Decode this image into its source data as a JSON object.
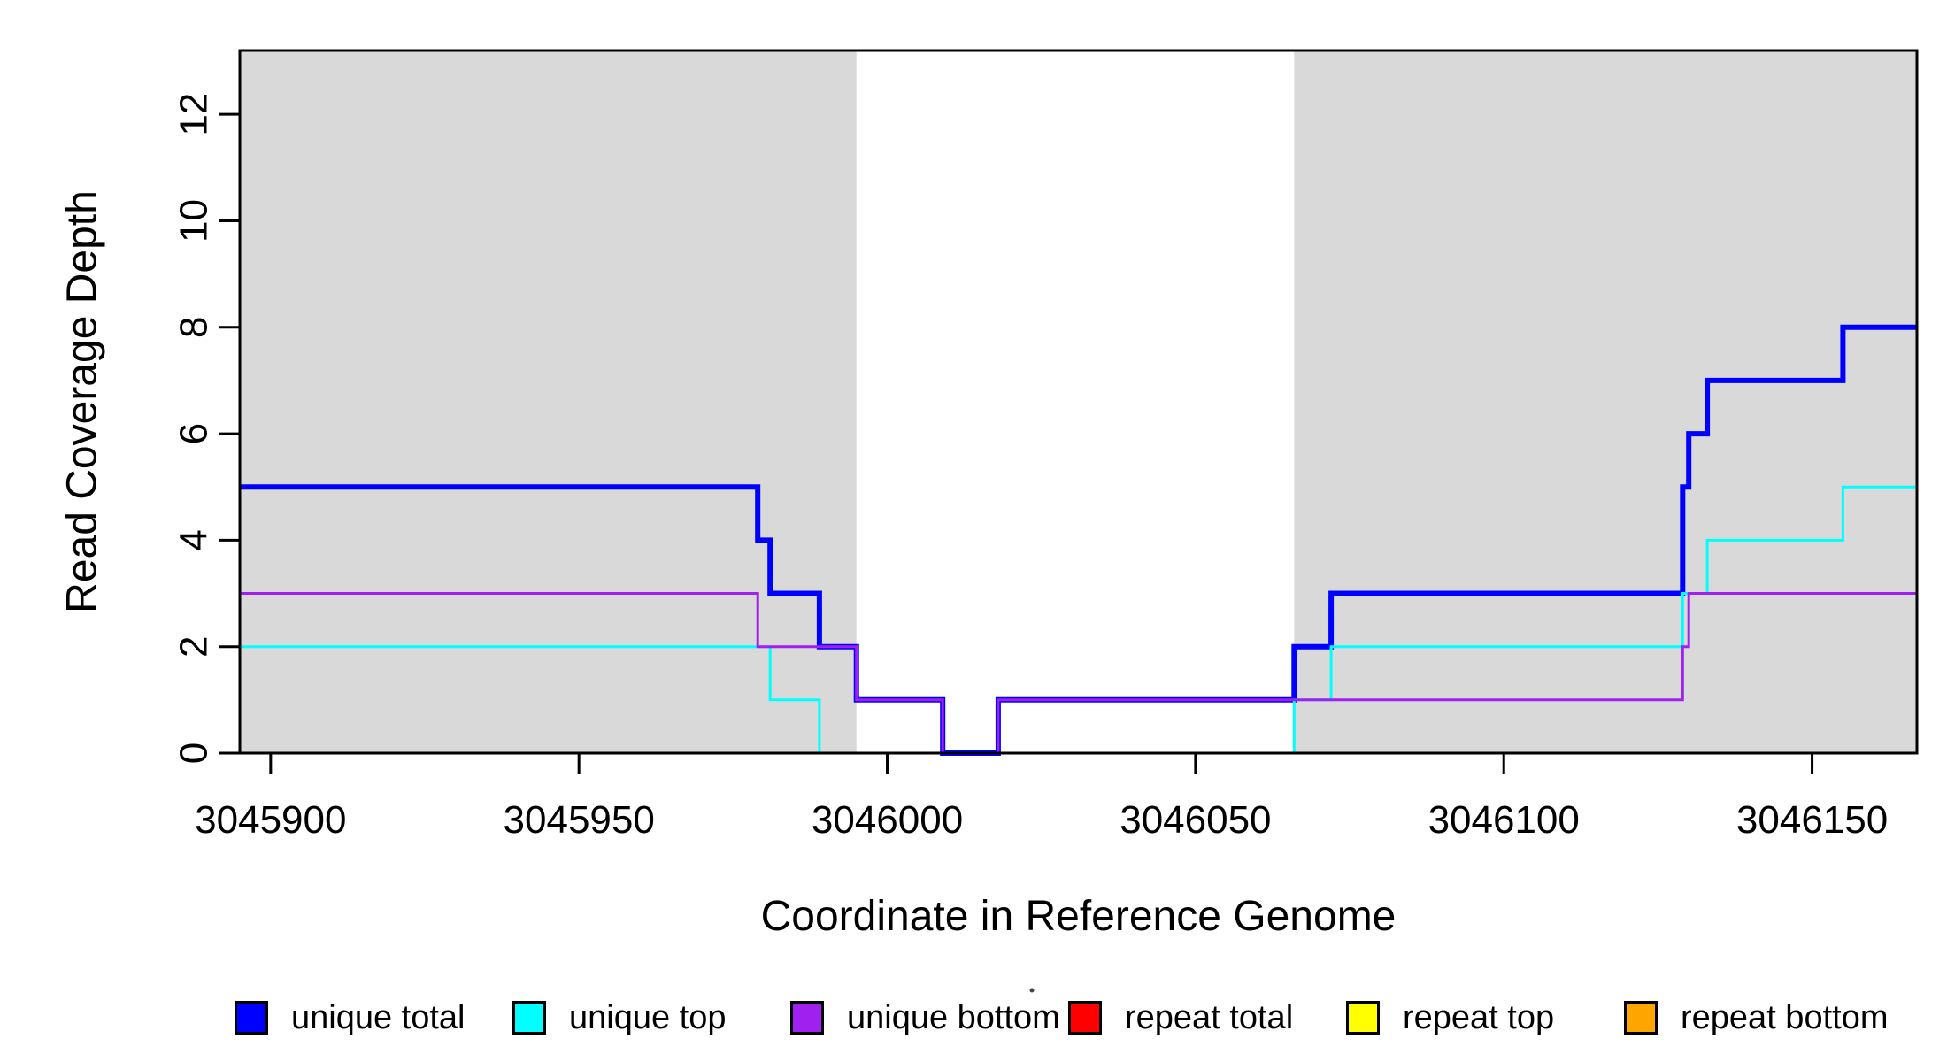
{
  "figure": {
    "background": "#ffffff",
    "band_color": "#d9d9d9",
    "box_color": "#000000",
    "stray_mark": "."
  },
  "chart_data": {
    "type": "line",
    "subtype": "step-after",
    "title": "",
    "xlabel": "Coordinate in Reference Genome",
    "ylabel": "Read Coverage Depth",
    "xlim": [
      3045895,
      3046167
    ],
    "ylim": [
      0,
      13.2
    ],
    "xticks": [
      3045900,
      3045950,
      3046000,
      3046050,
      3046100,
      3046150
    ],
    "yticks": [
      0,
      2,
      4,
      6,
      8,
      10,
      12
    ],
    "grid": false,
    "legend_position": "bottom",
    "shaded_regions": [
      {
        "name": "left-gray-band",
        "x0": 3045895,
        "x1": 3045995
      },
      {
        "name": "right-gray-band",
        "x0": 3046066,
        "x1": 3046167
      }
    ],
    "series": [
      {
        "name": "unique total",
        "color": "#0000ff",
        "width": 6,
        "breakpoints": [
          [
            3045895,
            5
          ],
          [
            3045979,
            4
          ],
          [
            3045981,
            3
          ],
          [
            3045989,
            2
          ],
          [
            3045995,
            1
          ],
          [
            3046009,
            0
          ],
          [
            3046018,
            1
          ],
          [
            3046066,
            2
          ],
          [
            3046072,
            3
          ],
          [
            3046129,
            5
          ],
          [
            3046130,
            6
          ],
          [
            3046133,
            7
          ],
          [
            3046155,
            8
          ]
        ]
      },
      {
        "name": "unique top",
        "color": "#00ffff",
        "width": 3,
        "breakpoints": [
          [
            3045895,
            2
          ],
          [
            3045981,
            1
          ],
          [
            3045989,
            0
          ],
          [
            3046066,
            1
          ],
          [
            3046072,
            2
          ],
          [
            3046129,
            3
          ],
          [
            3046133,
            4
          ],
          [
            3046155,
            5
          ]
        ]
      },
      {
        "name": "unique bottom",
        "color": "#a020f0",
        "width": 3,
        "breakpoints": [
          [
            3045895,
            3
          ],
          [
            3045979,
            2
          ],
          [
            3045995,
            1
          ],
          [
            3046009,
            0
          ],
          [
            3046018,
            1
          ],
          [
            3046129,
            2
          ],
          [
            3046130,
            3
          ]
        ]
      },
      {
        "name": "repeat total",
        "color": "#ff0000",
        "width": 2.5,
        "breakpoints": [
          [
            3045895,
            0
          ]
        ]
      },
      {
        "name": "repeat top",
        "color": "#ffff00",
        "width": 2.5,
        "breakpoints": [
          [
            3045895,
            0
          ]
        ]
      },
      {
        "name": "repeat bottom",
        "color": "#ffa500",
        "width": 2.5,
        "breakpoints": [
          [
            3045895,
            0
          ]
        ]
      }
    ]
  }
}
